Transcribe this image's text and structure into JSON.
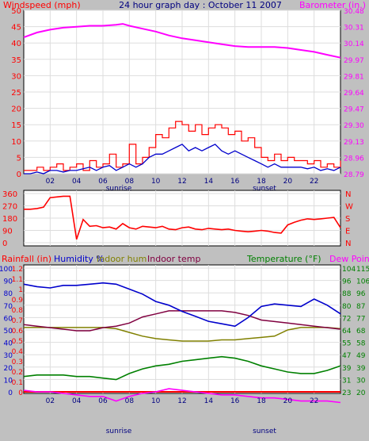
{
  "title": "24 hour graph day : October 11 2007",
  "colors": {
    "windspeed": "#ff0000",
    "windgust": "#ff0000",
    "windavg": "#0000cc",
    "barometer": "#ff00ff",
    "winddir": "#ff0000",
    "rain": "#ff0000",
    "humidity": "#0000cc",
    "indoor_hum": "#808000",
    "indoor_temp": "#800040",
    "temperature": "#008000",
    "dewpoint": "#ff00ff"
  },
  "chart_data": [
    {
      "type": "line",
      "name": "wind-baro",
      "left_label": "Windspeed (mph)",
      "right_label": "Barometer (in.)",
      "left_ticks": [
        "0",
        "2.5",
        "5",
        "7.5",
        "10",
        "12.5",
        "15",
        "17.5",
        "20",
        "22.5",
        "25",
        "27.5",
        "30",
        "32.5",
        "35",
        "37.5",
        "40",
        "42.5",
        "45",
        "47.5",
        "50"
      ],
      "left_tick_labels": [
        "0",
        "5",
        "10",
        "15",
        "20",
        "25",
        "30",
        "35",
        "40",
        "45",
        "50"
      ],
      "right_tick_labels": [
        "28.79",
        "28.96",
        "29.13",
        "29.30",
        "29.47",
        "29.64",
        "29.81",
        "29.97",
        "30.14",
        "30.31",
        "30.48"
      ],
      "x_tick_labels": [
        "02",
        "04",
        "06",
        "08",
        "10",
        "12",
        "14",
        "16",
        "18",
        "20",
        "22"
      ],
      "sunrise_label": "sunrise",
      "sunset_label": "sunset",
      "ylim_left": [
        0,
        50
      ],
      "ylim_right": [
        28.79,
        30.48
      ],
      "barometer": {
        "x": [
          0,
          1,
          2,
          3,
          4,
          5,
          6,
          7,
          7.5,
          8,
          9,
          10,
          11,
          12,
          13,
          14,
          15,
          16,
          17,
          18,
          19,
          20,
          21,
          22,
          23,
          24
        ],
        "y": [
          30.2,
          30.25,
          30.28,
          30.3,
          30.31,
          30.32,
          30.32,
          30.33,
          30.34,
          30.32,
          30.29,
          30.26,
          30.22,
          30.19,
          30.17,
          30.15,
          30.13,
          30.11,
          30.1,
          30.1,
          30.1,
          30.09,
          30.07,
          30.05,
          30.02,
          29.99
        ]
      },
      "wind_gust": {
        "x": [
          0,
          0.5,
          1,
          1.5,
          2,
          2.5,
          3,
          3.5,
          4,
          4.5,
          5,
          5.5,
          6,
          6.5,
          7,
          7.5,
          8,
          8.5,
          9,
          9.5,
          10,
          10.5,
          11,
          11.5,
          12,
          12.5,
          13,
          13.5,
          14,
          14.5,
          15,
          15.5,
          16,
          16.5,
          17,
          17.5,
          18,
          18.5,
          19,
          19.5,
          20,
          20.5,
          21,
          21.5,
          22,
          22.5,
          23,
          23.5,
          24
        ],
        "y": [
          1,
          1,
          2,
          1,
          2,
          3,
          1,
          2,
          3,
          1,
          4,
          2,
          3,
          6,
          2,
          3,
          9,
          3,
          5,
          8,
          12,
          11,
          14,
          16,
          15,
          13,
          15,
          12,
          14,
          15,
          14,
          12,
          13,
          10,
          11,
          8,
          5,
          4,
          6,
          4,
          5,
          4,
          4,
          3,
          4,
          2,
          3,
          2,
          4
        ]
      },
      "wind_avg": {
        "x": [
          0,
          0.5,
          1,
          1.5,
          2,
          2.5,
          3,
          3.5,
          4,
          4.5,
          5,
          5.5,
          6,
          6.5,
          7,
          7.5,
          8,
          8.5,
          9,
          9.5,
          10,
          10.5,
          11,
          11.5,
          12,
          12.5,
          13,
          13.5,
          14,
          14.5,
          15,
          15.5,
          16,
          16.5,
          17,
          17.5,
          18,
          18.5,
          19,
          19.5,
          20,
          20.5,
          21,
          21.5,
          22,
          22.5,
          23,
          23.5,
          24
        ],
        "y": [
          0,
          0,
          0.5,
          0,
          1,
          1,
          0.5,
          1,
          1,
          1.5,
          2,
          1,
          2,
          2.5,
          1,
          2,
          3,
          2,
          3,
          5,
          6,
          6,
          7,
          8,
          9,
          7,
          8,
          7,
          8,
          9,
          7,
          6,
          7,
          6,
          5,
          4,
          3,
          2,
          3,
          2,
          2,
          2,
          2,
          1.5,
          2,
          1,
          1.5,
          1,
          2
        ]
      }
    },
    {
      "type": "line",
      "name": "wind-direction",
      "left_tick_labels": [
        "0",
        "90",
        "180",
        "270",
        "360"
      ],
      "right_tick_labels": [
        "N",
        "E",
        "S",
        "W",
        "N"
      ],
      "ylim": [
        0,
        360
      ],
      "x": [
        0,
        0.5,
        1,
        1.5,
        2,
        2.5,
        3,
        3.5,
        4,
        4.5,
        5,
        5.5,
        6,
        6.5,
        7,
        7.5,
        8,
        8.5,
        9,
        9.5,
        10,
        10.5,
        11,
        11.5,
        12,
        12.5,
        13,
        13.5,
        14,
        14.5,
        15,
        15.5,
        16,
        16.5,
        17,
        17.5,
        18,
        18.5,
        19,
        19.5,
        20,
        20.5,
        21,
        21.5,
        22,
        22.5,
        23,
        23.5,
        24
      ],
      "y": [
        245,
        245,
        250,
        260,
        330,
        335,
        340,
        340,
        25,
        170,
        120,
        125,
        110,
        115,
        100,
        140,
        110,
        100,
        120,
        115,
        110,
        120,
        100,
        95,
        110,
        115,
        100,
        95,
        105,
        100,
        95,
        100,
        90,
        85,
        80,
        85,
        90,
        85,
        75,
        70,
        130,
        150,
        165,
        175,
        170,
        175,
        180,
        185,
        110
      ]
    },
    {
      "type": "line",
      "name": "rain-humidity-temp",
      "left_labels": [
        "Rainfall (in)",
        "Humidity %",
        "Indoor hum",
        "Indoor temp"
      ],
      "right_labels": [
        "Temperature (°F)",
        "Dew Point"
      ],
      "rain_ticks": [
        "0",
        "0.1",
        "0.2",
        "0.3",
        "0.4",
        "0.5",
        "0.6",
        "0.7",
        "0.8",
        "0.9",
        "1",
        "1.1",
        "1.2"
      ],
      "hum_ticks": [
        "0",
        "10",
        "20",
        "30",
        "40",
        "50",
        "60",
        "70",
        "80",
        "90",
        "100"
      ],
      "temp_ticks": [
        "23",
        "31",
        "39",
        "47",
        "55",
        "64",
        "72",
        "80",
        "88",
        "96",
        "104"
      ],
      "dew_ticks": [
        "20",
        "30",
        "39",
        "49",
        "58",
        "68",
        "77",
        "87",
        "96",
        "106",
        "115"
      ],
      "humidity": {
        "x": [
          0,
          1,
          2,
          3,
          4,
          5,
          6,
          7,
          8,
          9,
          10,
          11,
          12,
          13,
          14,
          15,
          16,
          17,
          18,
          19,
          20,
          21,
          22,
          23,
          24
        ],
        "y": [
          87,
          85,
          84,
          86,
          86,
          87,
          88,
          87,
          83,
          79,
          73,
          70,
          65,
          61,
          57,
          55,
          53,
          60,
          69,
          71,
          70,
          69,
          75,
          70,
          63
        ]
      },
      "indoor_hum": {
        "x": [
          0,
          1,
          2,
          3,
          4,
          5,
          6,
          7,
          8,
          9,
          10,
          11,
          12,
          13,
          14,
          15,
          16,
          17,
          18,
          19,
          20,
          21,
          22,
          23,
          24
        ],
        "y": [
          52,
          52,
          52,
          52,
          52,
          52,
          52,
          51,
          48,
          45,
          43,
          42,
          41,
          41,
          41,
          42,
          42,
          43,
          44,
          45,
          50,
          52,
          52,
          52,
          51
        ]
      },
      "indoor_temp": {
        "x": [
          0,
          1,
          2,
          3,
          4,
          5,
          6,
          7,
          8,
          9,
          10,
          11,
          12,
          13,
          14,
          15,
          16,
          17,
          18,
          19,
          20,
          21,
          22,
          23,
          24
        ],
        "y": [
          67,
          66,
          65,
          64,
          63,
          63,
          65,
          66,
          68,
          72,
          74,
          76,
          76,
          76,
          76,
          76,
          75,
          73,
          70,
          69,
          68,
          67,
          66,
          65,
          64
        ]
      },
      "temperature": {
        "x": [
          0,
          1,
          2,
          3,
          4,
          5,
          6,
          7,
          8,
          9,
          10,
          11,
          12,
          13,
          14,
          15,
          16,
          17,
          18,
          19,
          20,
          21,
          22,
          23,
          24
        ],
        "y": [
          33,
          34,
          34,
          34,
          33,
          33,
          32,
          31,
          35,
          38,
          40,
          41,
          43,
          44,
          45,
          46,
          45,
          43,
          40,
          38,
          36,
          35,
          35,
          37,
          40
        ]
      },
      "dewpoint": {
        "x": [
          0,
          1,
          2,
          3,
          4,
          5,
          6,
          7,
          8,
          9,
          10,
          11,
          12,
          13,
          14,
          15,
          16,
          17,
          18,
          19,
          20,
          21,
          22,
          23,
          24
        ],
        "y": [
          24,
          23,
          23,
          22,
          21,
          20,
          20,
          17,
          20,
          22,
          23,
          25,
          24,
          23,
          22,
          21,
          21,
          20,
          19,
          19,
          18,
          17,
          17,
          17,
          16
        ]
      },
      "rain": {
        "x": [
          0,
          24
        ],
        "y": [
          0,
          0
        ]
      },
      "x_tick_labels": [
        "02",
        "04",
        "06",
        "08",
        "10",
        "12",
        "14",
        "16",
        "18",
        "20",
        "22"
      ],
      "sunrise_label": "sunrise",
      "sunset_label": "sunset"
    }
  ]
}
